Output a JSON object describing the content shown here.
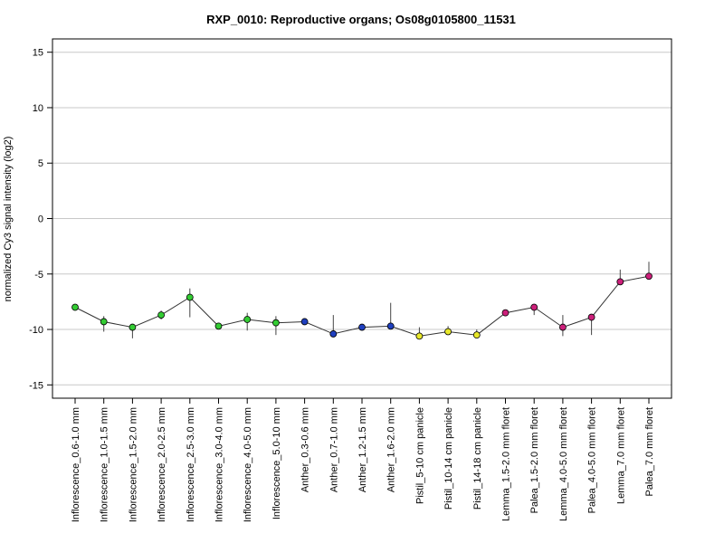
{
  "chart_data": {
    "type": "line",
    "title": "RXP_0010: Reproductive organs; Os08g0105800_11531",
    "ylabel": "normalized Cy3 signal intensity (log2)",
    "xlabel": "",
    "ylim": [
      -16.2,
      16.2
    ],
    "yticks": [
      -15,
      -10,
      -5,
      0,
      5,
      10,
      15
    ],
    "grid": "horizontal",
    "categories": [
      "Inflorescence_0.6-1.0 mm",
      "Inflorescence_1.0-1.5 mm",
      "Inflorescence_1.5-2.0 mm",
      "Inflorescence_2.0-2.5 mm",
      "Inflorescence_2.5-3.0 mm",
      "Inflorescence_3.0-4.0 mm",
      "Inflorescence_4.0-5.0 mm",
      "Inflorescence_5.0-10 mm",
      "Anther_0.3-0.6 mm",
      "Anther_0.7-1.0 mm",
      "Anther_1.2-1.5 mm",
      "Anther_1.6-2.0 mm",
      "Pistil_5-10 cm panicle",
      "Pistil_10-14 cm panicle",
      "Pistil_14-18 cm panicle",
      "Lemma_1.5-2.0 mm floret",
      "Palea_1.5-2.0 mm floret",
      "Lemma_4.0-5.0 mm floret",
      "Palea_4.0-5.0 mm floret",
      "Lemma_7.0 mm floret",
      "Palea_7.0 mm floret"
    ],
    "values": [
      -8.0,
      -9.3,
      -9.8,
      -8.7,
      -7.1,
      -9.7,
      -9.1,
      -9.4,
      -9.3,
      -10.4,
      -9.8,
      -9.7,
      -10.6,
      -10.2,
      -10.5,
      -8.5,
      -8.0,
      -9.8,
      -8.9,
      -5.7,
      -5.2
    ],
    "error_low": [
      -8.3,
      -10.2,
      -10.8,
      -9.1,
      -8.9,
      -9.9,
      -10.1,
      -10.5,
      -9.5,
      -10.5,
      -9.9,
      -9.8,
      -10.7,
      -10.3,
      -10.6,
      -8.6,
      -8.7,
      -10.6,
      -10.5,
      -6.0,
      -5.4
    ],
    "error_high": [
      -7.7,
      -8.8,
      -9.5,
      -8.3,
      -6.3,
      -9.6,
      -8.5,
      -8.8,
      -9.2,
      -8.7,
      -9.7,
      -7.6,
      -9.8,
      -9.7,
      -10.0,
      -8.3,
      -7.7,
      -8.7,
      -8.7,
      -4.6,
      -3.9
    ],
    "point_colors": [
      "#33cc33",
      "#33cc33",
      "#33cc33",
      "#33cc33",
      "#33cc33",
      "#33cc33",
      "#33cc33",
      "#33cc33",
      "#1f3fbf",
      "#1f3fbf",
      "#1f3fbf",
      "#1f3fbf",
      "#e8e82a",
      "#e8e82a",
      "#e8e82a",
      "#cc1f7a",
      "#cc1f7a",
      "#cc1f7a",
      "#cc1f7a",
      "#cc1f7a",
      "#cc1f7a"
    ],
    "line_color": "#333333"
  }
}
